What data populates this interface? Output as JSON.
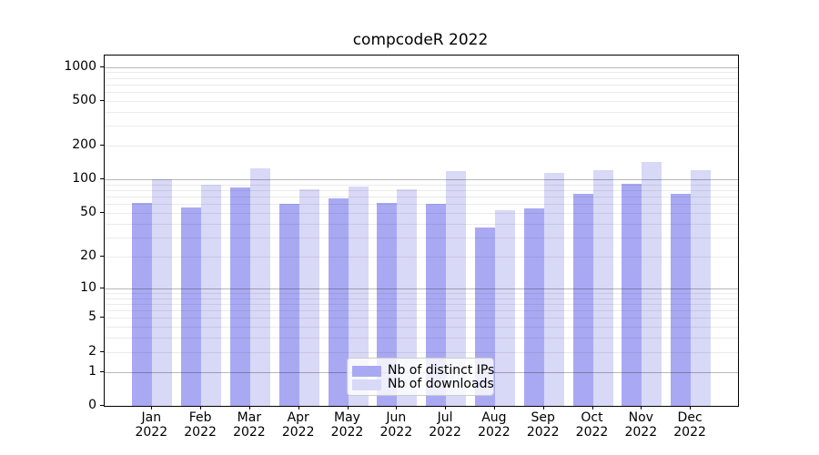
{
  "title": "compcodeR 2022",
  "chart_data": {
    "type": "bar",
    "title": "compcodeR 2022",
    "categories": [
      "Jan",
      "Feb",
      "Mar",
      "Apr",
      "May",
      "Jun",
      "Jul",
      "Aug",
      "Sep",
      "Oct",
      "Nov",
      "Dec"
    ],
    "year": "2022",
    "series": [
      {
        "name": "Nb of distinct IPs",
        "color": "#a9a9f3",
        "values": [
          62,
          56,
          84,
          60,
          68,
          62,
          60,
          37,
          55,
          74,
          92,
          74
        ]
      },
      {
        "name": "Nb of downloads",
        "color": "#d8d8f7",
        "values": [
          101,
          90,
          125,
          82,
          86,
          82,
          119,
          53,
          115,
          120,
          142,
          121
        ]
      }
    ],
    "yscale": "log1p",
    "yticks": [
      0,
      1,
      2,
      5,
      10,
      20,
      50,
      100,
      200,
      500,
      1000
    ],
    "ylim": [
      0,
      1260
    ],
    "xlabel": "",
    "ylabel": "",
    "grid": true,
    "legend_position": "lower center"
  },
  "legend": {
    "items": [
      {
        "label": "Nb of distinct IPs"
      },
      {
        "label": "Nb of downloads"
      }
    ]
  }
}
